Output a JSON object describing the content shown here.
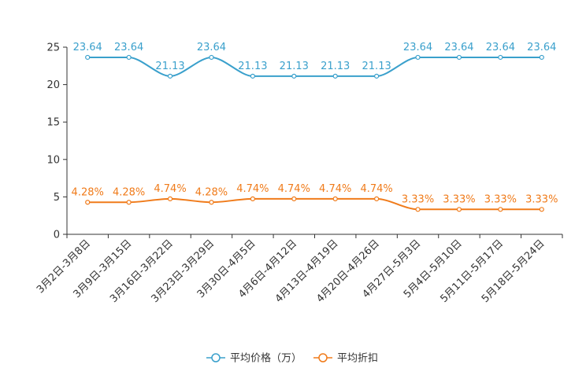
{
  "chart_data": {
    "type": "line",
    "categories": [
      "3月2日-3月8日",
      "3月9日-3月15日",
      "3月16日-3月22日",
      "3月23日-3月29日",
      "3月30日-4月5日",
      "4月6日-4月12日",
      "4月13日-4月19日",
      "4月20日-4月26日",
      "4月27日-5月3日",
      "5月4日-5月10日",
      "5月11日-5月17日",
      "5月18日-5月24日"
    ],
    "ylim": [
      0,
      25
    ],
    "yticks": [
      "0",
      "5",
      "10",
      "15",
      "20",
      "25"
    ],
    "series": [
      {
        "name": "平均价格（万）",
        "color": "#3aa0cc",
        "values": [
          23.64,
          23.64,
          21.13,
          23.64,
          21.13,
          21.13,
          21.13,
          21.13,
          23.64,
          23.64,
          23.64,
          23.64
        ],
        "labels": [
          "23.64",
          "23.64",
          "21.13",
          "23.64",
          "21.13",
          "21.13",
          "21.13",
          "21.13",
          "23.64",
          "23.64",
          "23.64",
          "23.64"
        ]
      },
      {
        "name": "平均折扣",
        "color": "#f07b1a",
        "values": [
          4.28,
          4.28,
          4.74,
          4.28,
          4.74,
          4.74,
          4.74,
          4.74,
          3.33,
          3.33,
          3.33,
          3.33
        ],
        "labels": [
          "4.28%",
          "4.28%",
          "4.74%",
          "4.28%",
          "4.74%",
          "4.74%",
          "4.74%",
          "4.74%",
          "3.33%",
          "3.33%",
          "3.33%",
          "3.33%"
        ]
      }
    ],
    "legend_position": "bottom-center"
  }
}
